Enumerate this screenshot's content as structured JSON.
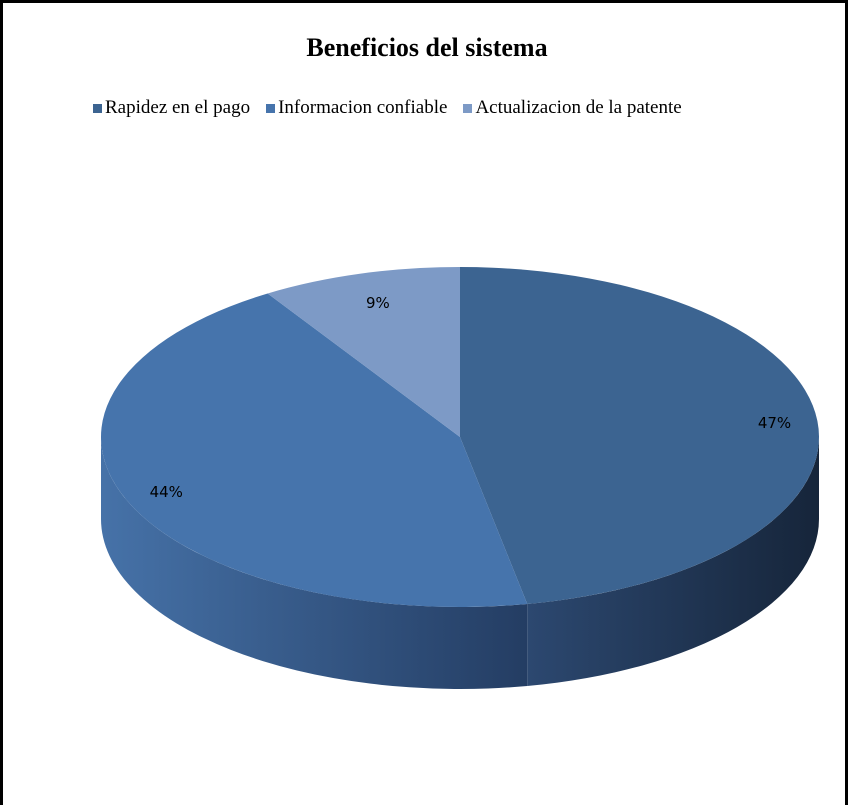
{
  "chart_data": {
    "type": "pie",
    "title": "Beneficios del sistema",
    "legend_position": "top",
    "three_d": true,
    "slices": [
      {
        "label": "Rapidez en el pago",
        "value": 47,
        "display": "47%",
        "color": "#3c6491",
        "side_dark": "#1a2a3e",
        "side_light": "#2c4870"
      },
      {
        "label": "Informacion confiable",
        "value": 44,
        "display": "44%",
        "color": "#4674ac",
        "side_dark": "#26406a",
        "side_light": "#4672a8"
      },
      {
        "label": "Actualizacion de la patente",
        "value": 9,
        "display": "9%",
        "color": "#7d9ac6",
        "side_dark": "#5a77a3",
        "side_light": "#7d9ac6"
      }
    ]
  }
}
